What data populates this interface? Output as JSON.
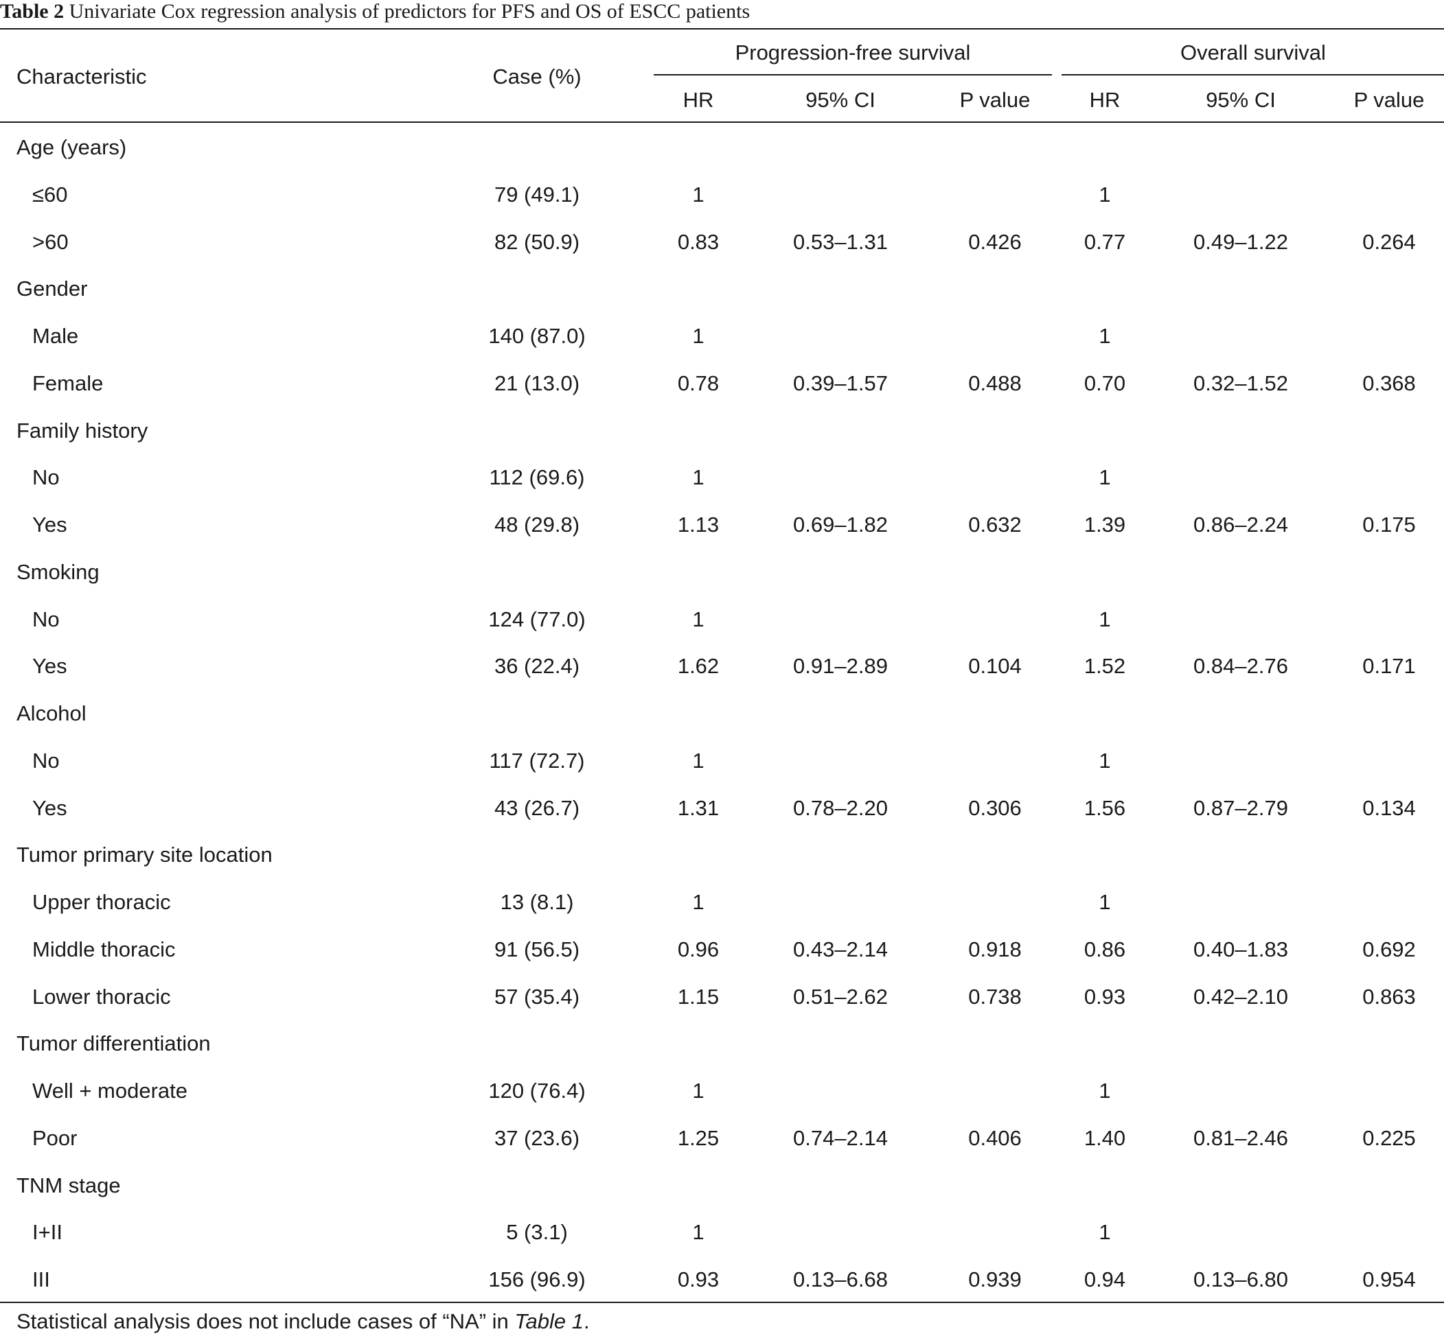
{
  "caption": {
    "label": "Table 2",
    "text": "Univariate Cox regression analysis of predictors for PFS and OS of ESCC patients"
  },
  "header": {
    "characteristic": "Characteristic",
    "case": "Case (%)",
    "group_pfs": "Progression-free survival",
    "group_os": "Overall survival",
    "pfs": {
      "hr": "HR",
      "ci": "95% CI",
      "p": "P value"
    },
    "os": {
      "hr": "HR",
      "ci": "95% CI",
      "p": "P value"
    }
  },
  "rows": [
    {
      "type": "group",
      "label": "Age (years)"
    },
    {
      "type": "item",
      "label": "≤60",
      "case": "79 (49.1)",
      "pfs_hr": "1",
      "pfs_ci": "",
      "pfs_p": "",
      "os_hr": "1",
      "os_ci": "",
      "os_p": ""
    },
    {
      "type": "item",
      "label": ">60",
      "case": "82 (50.9)",
      "pfs_hr": "0.83",
      "pfs_ci": "0.53–1.31",
      "pfs_p": "0.426",
      "os_hr": "0.77",
      "os_ci": "0.49–1.22",
      "os_p": "0.264"
    },
    {
      "type": "group",
      "label": "Gender"
    },
    {
      "type": "item",
      "label": "Male",
      "case": "140 (87.0)",
      "pfs_hr": "1",
      "pfs_ci": "",
      "pfs_p": "",
      "os_hr": "1",
      "os_ci": "",
      "os_p": ""
    },
    {
      "type": "item",
      "label": "Female",
      "case": "21 (13.0)",
      "pfs_hr": "0.78",
      "pfs_ci": "0.39–1.57",
      "pfs_p": "0.488",
      "os_hr": "0.70",
      "os_ci": "0.32–1.52",
      "os_p": "0.368"
    },
    {
      "type": "group",
      "label": "Family history"
    },
    {
      "type": "item",
      "label": "No",
      "case": "112 (69.6)",
      "pfs_hr": "1",
      "pfs_ci": "",
      "pfs_p": "",
      "os_hr": "1",
      "os_ci": "",
      "os_p": ""
    },
    {
      "type": "item",
      "label": "Yes",
      "case": "48 (29.8)",
      "pfs_hr": "1.13",
      "pfs_ci": "0.69–1.82",
      "pfs_p": "0.632",
      "os_hr": "1.39",
      "os_ci": "0.86–2.24",
      "os_p": "0.175"
    },
    {
      "type": "group",
      "label": "Smoking"
    },
    {
      "type": "item",
      "label": "No",
      "case": "124 (77.0)",
      "pfs_hr": "1",
      "pfs_ci": "",
      "pfs_p": "",
      "os_hr": "1",
      "os_ci": "",
      "os_p": ""
    },
    {
      "type": "item",
      "label": "Yes",
      "case": "36 (22.4)",
      "pfs_hr": "1.62",
      "pfs_ci": "0.91–2.89",
      "pfs_p": "0.104",
      "os_hr": "1.52",
      "os_ci": "0.84–2.76",
      "os_p": "0.171"
    },
    {
      "type": "group",
      "label": "Alcohol"
    },
    {
      "type": "item",
      "label": "No",
      "case": "117 (72.7)",
      "pfs_hr": "1",
      "pfs_ci": "",
      "pfs_p": "",
      "os_hr": "1",
      "os_ci": "",
      "os_p": ""
    },
    {
      "type": "item",
      "label": "Yes",
      "case": "43 (26.7)",
      "pfs_hr": "1.31",
      "pfs_ci": "0.78–2.20",
      "pfs_p": "0.306",
      "os_hr": "1.56",
      "os_ci": "0.87–2.79",
      "os_p": "0.134"
    },
    {
      "type": "group",
      "label": "Tumor primary site location"
    },
    {
      "type": "item",
      "label": "Upper thoracic",
      "case": "13 (8.1)",
      "pfs_hr": "1",
      "pfs_ci": "",
      "pfs_p": "",
      "os_hr": "1",
      "os_ci": "",
      "os_p": ""
    },
    {
      "type": "item",
      "label": "Middle thoracic",
      "case": "91 (56.5)",
      "pfs_hr": "0.96",
      "pfs_ci": "0.43–2.14",
      "pfs_p": "0.918",
      "os_hr": "0.86",
      "os_ci": "0.40–1.83",
      "os_p": "0.692"
    },
    {
      "type": "item",
      "label": "Lower thoracic",
      "case": "57 (35.4)",
      "pfs_hr": "1.15",
      "pfs_ci": "0.51–2.62",
      "pfs_p": "0.738",
      "os_hr": "0.93",
      "os_ci": "0.42–2.10",
      "os_p": "0.863"
    },
    {
      "type": "group",
      "label": "Tumor differentiation"
    },
    {
      "type": "item",
      "label": "Well + moderate",
      "case": "120 (76.4)",
      "pfs_hr": "1",
      "pfs_ci": "",
      "pfs_p": "",
      "os_hr": "1",
      "os_ci": "",
      "os_p": ""
    },
    {
      "type": "item",
      "label": "Poor",
      "case": "37 (23.6)",
      "pfs_hr": "1.25",
      "pfs_ci": "0.74–2.14",
      "pfs_p": "0.406",
      "os_hr": "1.40",
      "os_ci": "0.81–2.46",
      "os_p": "0.225"
    },
    {
      "type": "group",
      "label": "TNM stage"
    },
    {
      "type": "item",
      "label": "I+II",
      "case": "5 (3.1)",
      "pfs_hr": "1",
      "pfs_ci": "",
      "pfs_p": "",
      "os_hr": "1",
      "os_ci": "",
      "os_p": ""
    },
    {
      "type": "item",
      "label": "III",
      "case": "156 (96.9)",
      "pfs_hr": "0.93",
      "pfs_ci": "0.13–6.68",
      "pfs_p": "0.939",
      "os_hr": "0.94",
      "os_ci": "0.13–6.80",
      "os_p": "0.954"
    }
  ],
  "footnote": {
    "before": "Statistical analysis does not include cases of “NA” in ",
    "ref": "Table 1",
    "after": "."
  }
}
